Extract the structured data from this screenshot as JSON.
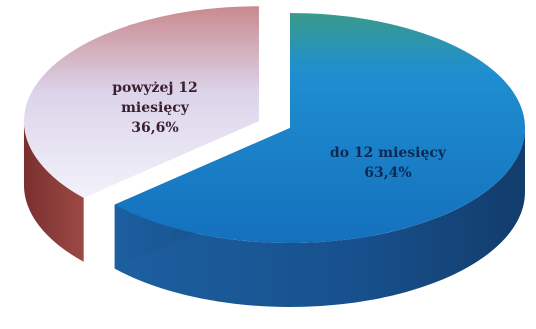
{
  "chart_data": {
    "type": "pie",
    "title": "",
    "legend": "none",
    "slices": [
      {
        "label_lines": [
          "do 12 miesięcy"
        ],
        "value_label": "63,4%",
        "value": 63.4,
        "top_color": "#1f8ccd",
        "side_color": "#1a4f8a",
        "exploded": false
      },
      {
        "label_lines": [
          "powyżej 12",
          "miesięcy"
        ],
        "value_label": "36,6%",
        "value": 36.6,
        "top_color": "#e8dcec",
        "side_color": "#8a3a3a",
        "exploded": true
      }
    ]
  }
}
